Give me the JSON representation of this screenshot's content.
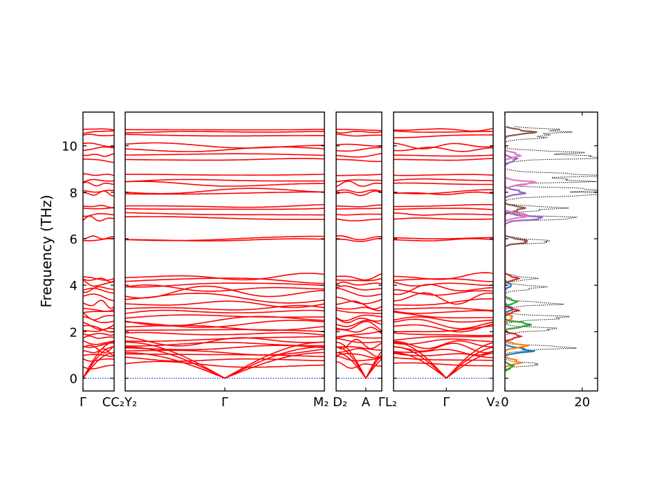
{
  "chart_data": {
    "type": "line",
    "ylabel": "Frequency (THz)",
    "ylim": [
      -0.55,
      11.45
    ],
    "y_ticks": [
      0,
      2,
      4,
      6,
      8,
      10
    ],
    "series_color": "#ff0000",
    "zero_line_color": "#0000cc",
    "segments": [
      {
        "name": "segment-1",
        "rel_width": 45,
        "tick_labels": [
          {
            "pos": 0,
            "text": "Γ"
          }
        ]
      },
      {
        "name": "segment-2",
        "rel_width": 288,
        "tick_labels": [
          {
            "pos": 0.5,
            "text": "Γ"
          }
        ]
      },
      {
        "name": "segment-3",
        "rel_width": 66,
        "tick_labels": [
          {
            "pos": 0.65,
            "text": "A"
          }
        ]
      },
      {
        "name": "segment-4",
        "rel_width": 144,
        "tick_labels": [
          {
            "pos": 0.53,
            "text": "Γ"
          }
        ]
      }
    ],
    "boundary_labels": [
      {
        "between": [
          0,
          1
        ],
        "text": "CC₂Y₂"
      },
      {
        "between": [
          1,
          2
        ],
        "text": "M₂ D₂"
      },
      {
        "between": [
          2,
          3
        ],
        "text": "ΓL₂"
      },
      {
        "after": 3,
        "text": "V₂"
      }
    ],
    "band_centers": [
      0.55,
      0.8,
      1.0,
      1.15,
      1.3,
      1.45,
      1.6,
      1.75,
      1.9,
      2.05,
      2.2,
      2.35,
      2.5,
      2.65,
      2.85,
      3.0,
      3.2,
      3.45,
      3.7,
      3.85,
      4.05,
      4.25,
      4.35,
      5.95,
      6.05,
      6.85,
      7.05,
      7.3,
      7.4,
      7.95,
      8.05,
      8.35,
      8.5,
      8.75,
      9.4,
      9.6,
      9.85,
      10.0,
      10.45,
      10.6,
      10.7
    ],
    "acoustic_max": [
      1.1,
      1.35,
      1.55
    ],
    "dos": {
      "xlim": [
        0,
        24
      ],
      "x_ticks": [
        0,
        20
      ],
      "total_color": "#000000",
      "partials": [
        {
          "color": "#1f77b4",
          "peaks": [
            [
              1.2,
              7
            ],
            [
              3.0,
              2
            ],
            [
              4.0,
              1.5
            ]
          ]
        },
        {
          "color": "#ff7f0e",
          "peaks": [
            [
              0.7,
              4
            ],
            [
              1.4,
              5
            ],
            [
              2.6,
              2
            ]
          ]
        },
        {
          "color": "#2ca02c",
          "peaks": [
            [
              0.5,
              2
            ],
            [
              2.3,
              7
            ],
            [
              3.3,
              3
            ]
          ]
        },
        {
          "color": "#d62728",
          "peaks": [
            [
              1.8,
              4
            ],
            [
              2.9,
              3
            ],
            [
              4.3,
              3
            ]
          ]
        },
        {
          "color": "#9467bd",
          "peaks": [
            [
              6.9,
              9
            ],
            [
              8.0,
              5
            ],
            [
              9.4,
              3
            ]
          ]
        },
        {
          "color": "#8c564b",
          "peaks": [
            [
              5.9,
              6
            ],
            [
              7.3,
              5
            ],
            [
              10.6,
              7
            ]
          ]
        },
        {
          "color": "#e377c2",
          "peaks": [
            [
              7.0,
              6
            ],
            [
              8.4,
              7
            ],
            [
              9.6,
              4
            ]
          ]
        }
      ],
      "total_peaks": [
        [
          0.6,
          8
        ],
        [
          1.3,
          17
        ],
        [
          2.1,
          13
        ],
        [
          2.6,
          17
        ],
        [
          3.2,
          12
        ],
        [
          3.9,
          10
        ],
        [
          4.3,
          7
        ],
        [
          5.9,
          12
        ],
        [
          6.9,
          17
        ],
        [
          7.3,
          15
        ],
        [
          7.9,
          22
        ],
        [
          8.1,
          24
        ],
        [
          8.5,
          20
        ],
        [
          8.75,
          22
        ],
        [
          9.5,
          22
        ],
        [
          9.7,
          16
        ],
        [
          10.4,
          12
        ],
        [
          10.65,
          17
        ]
      ]
    }
  }
}
